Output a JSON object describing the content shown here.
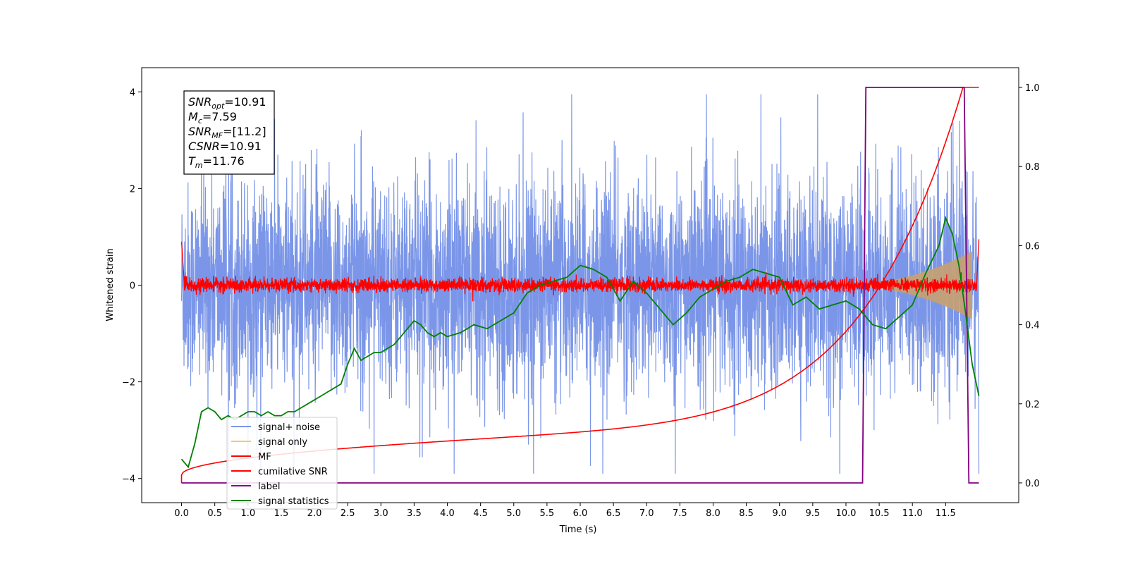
{
  "chart_data": {
    "type": "line",
    "xlabel": "Time (s)",
    "ylabel": "Whitened strain",
    "xlim": [
      -0.6,
      12.6
    ],
    "ylim": [
      -4.5,
      4.5
    ],
    "y2lim": [
      -0.05,
      1.05
    ],
    "xticks": [
      "0.0",
      "0.5",
      "1.0",
      "1.5",
      "2.0",
      "2.5",
      "3.0",
      "3.5",
      "4.0",
      "4.5",
      "5.0",
      "5.5",
      "6.0",
      "6.5",
      "7.0",
      "7.5",
      "8.0",
      "8.5",
      "9.0",
      "9.5",
      "10.0",
      "10.5",
      "11.0",
      "11.5"
    ],
    "yticks": [
      "4",
      "2",
      "0",
      "−2",
      "−4"
    ],
    "y2ticks": [
      "1.0",
      "0.8",
      "0.6",
      "0.4",
      "0.2",
      "0.0"
    ],
    "legend_placement": "lower-left",
    "series": [
      {
        "name": "signal+ noise",
        "color": "#7b96e8",
        "description_range": [
          -3.9,
          3.9
        ]
      },
      {
        "name": "signal only",
        "color": "#f5c86e"
      },
      {
        "name": "MF",
        "color": "#ff0000"
      },
      {
        "name": "cumilative SNR",
        "color": "#ff0000"
      },
      {
        "name": "label",
        "color": "#800080"
      },
      {
        "name": "signal statistics",
        "color": "#008000"
      }
    ],
    "signal_only_envelope": {
      "start": 9.8,
      "end": 11.9,
      "peak_amplitude": 0.7,
      "fill_color": "#c8a070"
    },
    "cumulative_snr": {
      "axis": "right",
      "start": 0.0,
      "end": 11.76,
      "min": 0.0,
      "max": 1.0
    },
    "label_series": {
      "axis": "right",
      "x": [
        0.0,
        10.25,
        10.3,
        11.78,
        11.85,
        12.0
      ],
      "y": [
        0.0,
        0.0,
        1.0,
        1.0,
        0.0,
        0.0
      ]
    },
    "signal_statistics": {
      "axis": "right",
      "x": [
        0.0,
        0.1,
        0.2,
        0.3,
        0.4,
        0.5,
        0.6,
        0.7,
        0.8,
        0.9,
        1.0,
        1.1,
        1.2,
        1.3,
        1.4,
        1.5,
        1.6,
        1.7,
        1.8,
        1.9,
        2.0,
        2.1,
        2.2,
        2.3,
        2.4,
        2.5,
        2.6,
        2.7,
        2.8,
        2.9,
        3.0,
        3.1,
        3.2,
        3.3,
        3.4,
        3.5,
        3.6,
        3.7,
        3.8,
        3.9,
        4.0,
        4.2,
        4.4,
        4.6,
        4.8,
        5.0,
        5.2,
        5.4,
        5.6,
        5.8,
        6.0,
        6.2,
        6.4,
        6.6,
        6.8,
        7.0,
        7.2,
        7.4,
        7.6,
        7.8,
        8.0,
        8.2,
        8.4,
        8.6,
        8.8,
        9.0,
        9.2,
        9.4,
        9.6,
        9.8,
        10.0,
        10.2,
        10.4,
        10.6,
        10.8,
        11.0,
        11.2,
        11.4,
        11.5,
        11.6,
        11.7,
        11.8,
        11.9,
        12.0
      ],
      "y": [
        0.06,
        0.04,
        0.1,
        0.18,
        0.19,
        0.18,
        0.16,
        0.17,
        0.16,
        0.17,
        0.18,
        0.18,
        0.17,
        0.18,
        0.17,
        0.17,
        0.18,
        0.18,
        0.19,
        0.2,
        0.21,
        0.22,
        0.23,
        0.24,
        0.25,
        0.3,
        0.34,
        0.31,
        0.32,
        0.33,
        0.33,
        0.34,
        0.35,
        0.37,
        0.39,
        0.41,
        0.4,
        0.38,
        0.37,
        0.38,
        0.37,
        0.38,
        0.4,
        0.39,
        0.41,
        0.43,
        0.48,
        0.5,
        0.51,
        0.52,
        0.55,
        0.54,
        0.52,
        0.46,
        0.51,
        0.48,
        0.44,
        0.4,
        0.43,
        0.47,
        0.49,
        0.51,
        0.52,
        0.54,
        0.53,
        0.52,
        0.45,
        0.47,
        0.44,
        0.45,
        0.46,
        0.44,
        0.4,
        0.39,
        0.42,
        0.45,
        0.53,
        0.6,
        0.67,
        0.63,
        0.55,
        0.43,
        0.3,
        0.22
      ]
    },
    "annotations": {
      "snr_opt": "=10.91",
      "mc": "=7.59",
      "snr_mf": "=[11.2]",
      "csnr": "=10.91",
      "tm": "=11.76"
    }
  }
}
